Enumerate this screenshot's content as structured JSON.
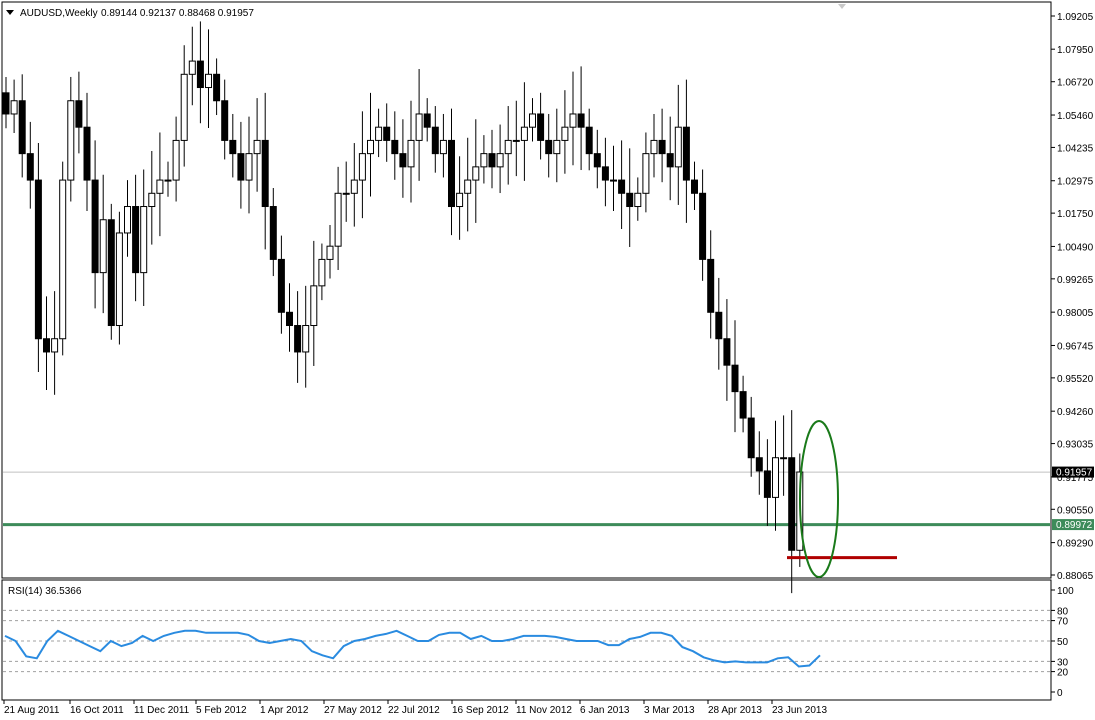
{
  "header": {
    "symbol_timeframe": "AUDUSD,Weekly",
    "ohlc": "0.89144 0.92137 0.88468 0.91957"
  },
  "rsi_header": "RSI(14) 36.5366",
  "colors": {
    "bull_body": "#ffffff",
    "bear_body": "#000000",
    "support_line": "#3d8b5a",
    "low_line": "#b00000",
    "ellipse": "#1a7a1a",
    "rsi_line": "#2a8be0",
    "bid_line": "#c0c0c0"
  },
  "price_levels": {
    "current": 0.91957,
    "current_label": "0.91957",
    "support": 0.89972,
    "support_label": "0.89972",
    "recent_low": 0.8872
  },
  "chart_data": [
    {
      "type": "candlestick",
      "title": "AUDUSD,Weekly",
      "ylim": [
        0.8807,
        1.095
      ],
      "y_ticks": [
        "1.09205",
        "1.07950",
        "1.06720",
        "1.05460",
        "1.04235",
        "1.02975",
        "1.01750",
        "1.00490",
        "0.99265",
        "0.98005",
        "0.96745",
        "0.95520",
        "0.94260",
        "0.93035",
        "0.91775",
        "0.90550",
        "0.89290",
        "0.88065"
      ],
      "x_labels": [
        "21 Aug 2011",
        "16 Oct 2011",
        "11 Dec 2011",
        "5 Feb 2012",
        "1 Apr 2012",
        "27 May 2012",
        "22 Jul 2012",
        "16 Sep 2012",
        "11 Nov 2012",
        "6 Jan 2013",
        "3 Mar 2013",
        "28 Apr 2013",
        "23 Jun 2013"
      ],
      "close": [
        1.055,
        1.06,
        1.04,
        1.03,
        0.97,
        0.965,
        0.97,
        1.03,
        1.06,
        1.05,
        1.03,
        0.995,
        1.015,
        0.975,
        1.01,
        1.02,
        0.995,
        1.02,
        1.025,
        1.03,
        1.03,
        1.045,
        1.07,
        1.075,
        1.065,
        1.07,
        1.06,
        1.045,
        1.04,
        1.03,
        1.04,
        1.045,
        1.02,
        1.0,
        0.98,
        0.975,
        0.965,
        0.975,
        0.99,
        1.0,
        1.005,
        1.025,
        1.025,
        1.03,
        1.04,
        1.045,
        1.05,
        1.045,
        1.04,
        1.035,
        1.045,
        1.055,
        1.05,
        1.04,
        1.045,
        1.02,
        1.025,
        1.03,
        1.035,
        1.04,
        1.035,
        1.04,
        1.045,
        1.045,
        1.05,
        1.055,
        1.045,
        1.04,
        1.045,
        1.05,
        1.055,
        1.05,
        1.04,
        1.035,
        1.03,
        1.03,
        1.025,
        1.02,
        1.025,
        1.04,
        1.045,
        1.04,
        1.035,
        1.05,
        1.03,
        1.025,
        1.0,
        0.98,
        0.97,
        0.96,
        0.95,
        0.94,
        0.925,
        0.92,
        0.91,
        0.925,
        0.925,
        0.89,
        0.9196
      ],
      "series": [
        {
          "name": "RSI(14)",
          "ylim": [
            0,
            100
          ],
          "ticks": [
            100,
            80,
            70,
            50,
            30,
            20,
            0
          ],
          "values": [
            55,
            50,
            35,
            33,
            50,
            60,
            55,
            50,
            45,
            40,
            50,
            45,
            48,
            55,
            50,
            55,
            58,
            60,
            60,
            58,
            58,
            58,
            58,
            56,
            50,
            48,
            50,
            52,
            50,
            40,
            36,
            33,
            45,
            50,
            52,
            55,
            57,
            60,
            55,
            50,
            50,
            56,
            58,
            58,
            52,
            55,
            50,
            50,
            52,
            55,
            55,
            55,
            54,
            52,
            50,
            50,
            50,
            46,
            46,
            52,
            54,
            58,
            58,
            55,
            44,
            40,
            34,
            31,
            29,
            30,
            29,
            29,
            29,
            33,
            34,
            25,
            26,
            36
          ]
        }
      ]
    }
  ]
}
